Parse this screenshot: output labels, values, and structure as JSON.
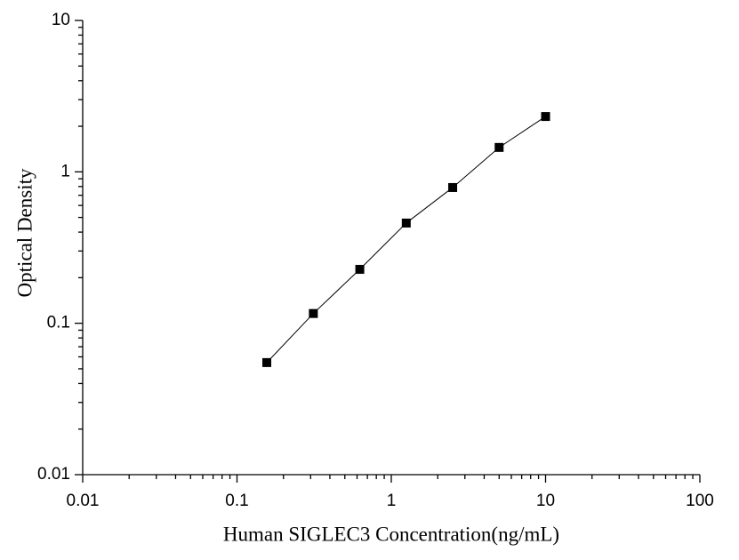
{
  "chart_data": {
    "type": "line",
    "x_label": "Human SIGLEC3 Concentration(ng/mL)",
    "y_label": "Optical Density",
    "x": [
      0.156,
      0.3125,
      0.625,
      1.25,
      2.5,
      5,
      10
    ],
    "series": [
      {
        "color": "#000000",
        "values": [
          0.055,
          0.116,
          0.227,
          0.459,
          0.788,
          1.45,
          2.32
        ]
      }
    ],
    "xlim": [
      0.01,
      100
    ],
    "xticks": [
      0.01,
      0.1,
      1,
      10,
      100
    ],
    "ylim": [
      0.01,
      10
    ],
    "yticks": [
      0.01,
      0.1,
      1,
      10
    ],
    "xscale": "log",
    "yscale": "log",
    "markers": "square",
    "minor_ticks": true
  }
}
